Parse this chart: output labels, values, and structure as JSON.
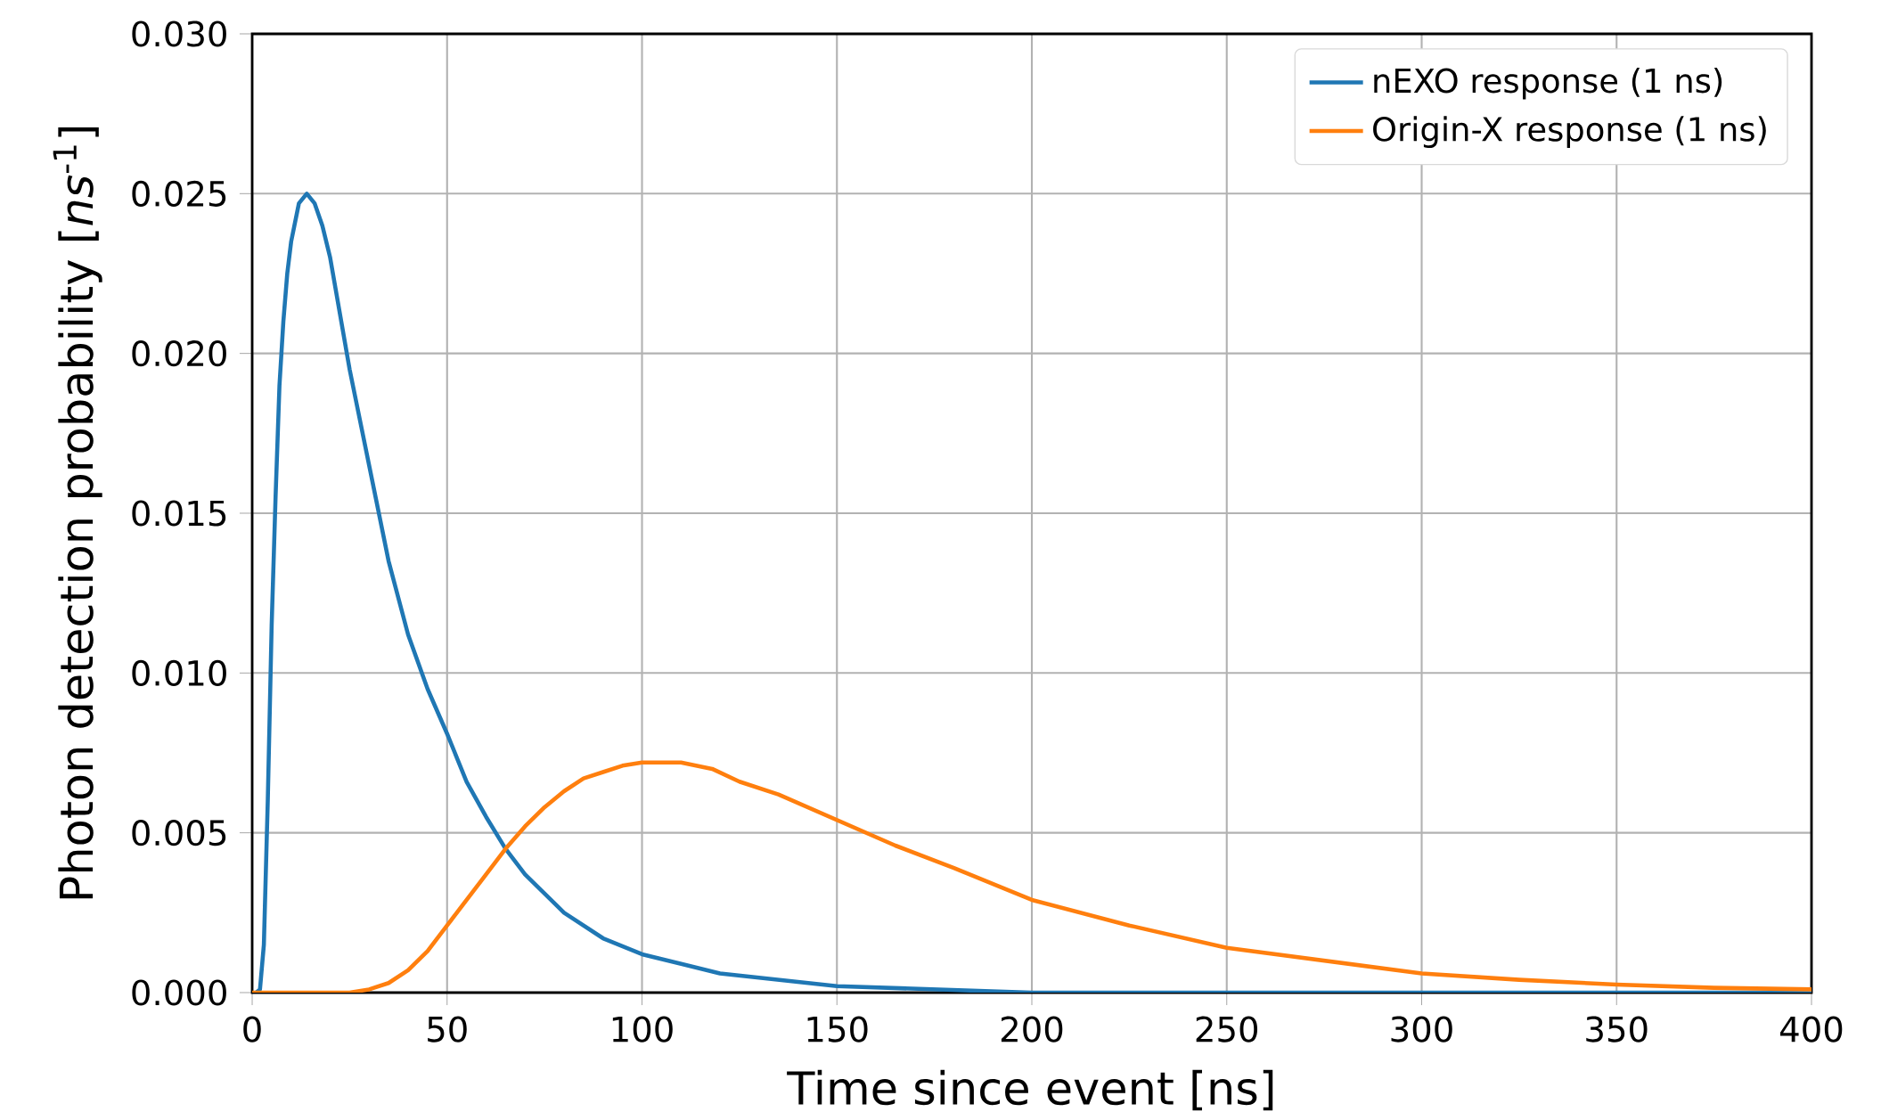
{
  "chart_data": {
    "type": "line",
    "xlabel": "Time since event [ns]",
    "ylabel": "Photon detection probability [*ns*$^{-1}$]",
    "xlim": [
      0,
      400
    ],
    "ylim": [
      0,
      0.03
    ],
    "xticks": [
      0,
      50,
      100,
      150,
      200,
      250,
      300,
      350,
      400
    ],
    "yticks": [
      {
        "value": 0,
        "label": "0.000"
      },
      {
        "value": 0.005,
        "label": "0.005"
      },
      {
        "value": 0.01,
        "label": "0.010"
      },
      {
        "value": 0.015,
        "label": "0.015"
      },
      {
        "value": 0.02,
        "label": "0.020"
      },
      {
        "value": 0.025,
        "label": "0.025"
      },
      {
        "value": 0.03,
        "label": "0.030"
      }
    ],
    "grid": true,
    "legend": "top right",
    "marker": "none",
    "line_style": "solid",
    "series": [
      {
        "name": "nEXO response (1 ns)",
        "color": "#1f77b4",
        "x": [
          1,
          2,
          3,
          4,
          5,
          6,
          7,
          8,
          9,
          10,
          12,
          14,
          16,
          18,
          20,
          25,
          30,
          35,
          40,
          45,
          50,
          55,
          60,
          65,
          70,
          80,
          90,
          100,
          120,
          150,
          200,
          250,
          300,
          400
        ],
        "values": [
          0,
          0.0001,
          0.0015,
          0.006,
          0.0115,
          0.0155,
          0.019,
          0.021,
          0.0225,
          0.0235,
          0.0247,
          0.025,
          0.0247,
          0.024,
          0.023,
          0.0195,
          0.0165,
          0.0135,
          0.0112,
          0.0095,
          0.0081,
          0.0066,
          0.0055,
          0.0045,
          0.0037,
          0.0025,
          0.0017,
          0.0012,
          0.0006,
          0.0002,
          0,
          0,
          0,
          0
        ]
      },
      {
        "name": "Origin-X response (1 ns)",
        "color": "#ff7f0e",
        "x": [
          0,
          20,
          25,
          30,
          35,
          40,
          45,
          50,
          55,
          60,
          65,
          70,
          75,
          80,
          85,
          90,
          95,
          100,
          105,
          110,
          118,
          125,
          135,
          150,
          165,
          180,
          200,
          225,
          250,
          275,
          300,
          325,
          350,
          375,
          400
        ],
        "values": [
          0,
          0,
          0,
          0.0001,
          0.0003,
          0.0007,
          0.0013,
          0.0021,
          0.0029,
          0.0037,
          0.0045,
          0.0052,
          0.0058,
          0.0063,
          0.0067,
          0.0069,
          0.0071,
          0.0072,
          0.0072,
          0.0072,
          0.007,
          0.0066,
          0.0062,
          0.0054,
          0.0046,
          0.0039,
          0.0029,
          0.0021,
          0.0014,
          0.001,
          0.0006,
          0.0004,
          0.00025,
          0.00015,
          0.0001
        ]
      }
    ]
  }
}
